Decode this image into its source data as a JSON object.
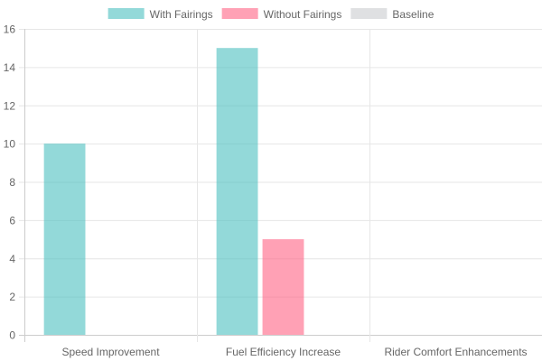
{
  "chart_data": {
    "type": "bar",
    "categories": [
      "Speed Improvement",
      "Fuel Efficiency Increase",
      "Rider Comfort Enhancements"
    ],
    "series": [
      {
        "name": "With Fairings",
        "values": [
          10,
          15,
          0
        ],
        "color": "#4bc0c0",
        "fill": "rgba(75,192,192,0.6)"
      },
      {
        "name": "Without Fairings",
        "values": [
          0,
          5,
          0
        ],
        "color": "#ff6384",
        "fill": "rgba(255,99,132,0.6)"
      },
      {
        "name": "Baseline",
        "values": [
          0,
          0,
          0
        ],
        "color": "#c9cbcf",
        "fill": "rgba(201,203,207,0.6)"
      }
    ],
    "ylim": [
      0,
      16
    ],
    "yticks": [
      "0",
      "2",
      "4",
      "6",
      "8",
      "10",
      "12",
      "14",
      "16"
    ],
    "grid": true,
    "legend_position": "top"
  }
}
